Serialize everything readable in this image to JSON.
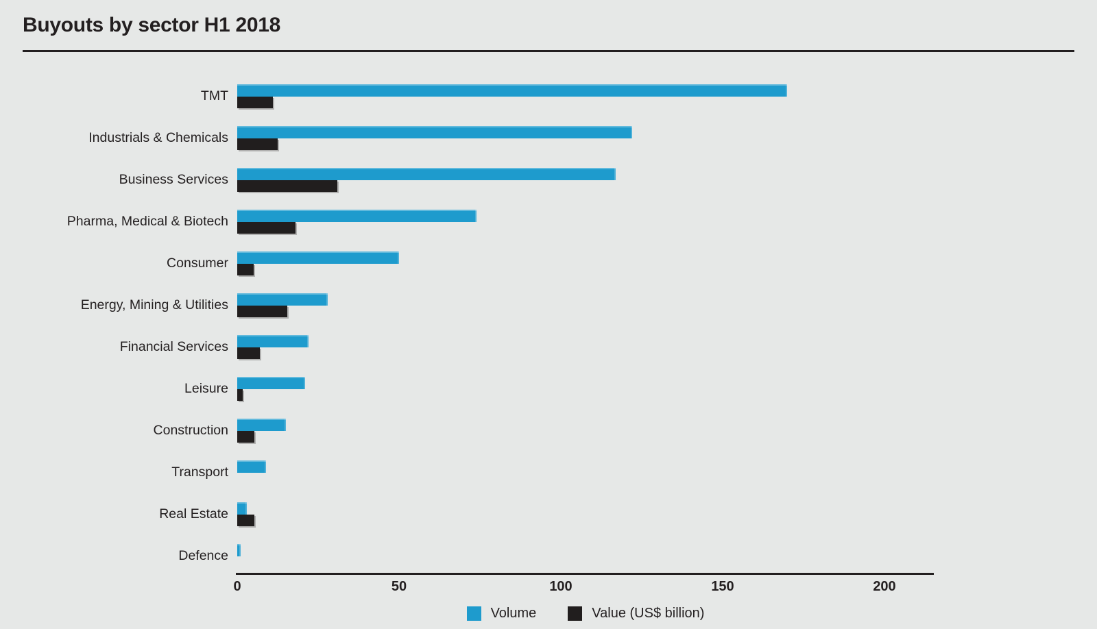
{
  "title": "Buyouts by sector H1 2018",
  "colors": {
    "background": "#e6e8e7",
    "volume_bar": "#1e9bcd",
    "value_bar": "#211e1e",
    "text": "#231f20",
    "axis_line": "#231f20"
  },
  "legend": [
    {
      "label": "Volume",
      "color": "#1e9bcd"
    },
    {
      "label": "Value (US$ billion)",
      "color": "#211e1e"
    }
  ],
  "axis": {
    "ticks": [
      "0",
      "50",
      "100",
      "150",
      "200"
    ],
    "tick_values": [
      0,
      50,
      100,
      150,
      200
    ],
    "max": 215
  },
  "chart_data": {
    "type": "bar",
    "orientation": "horizontal",
    "title": "Buyouts by sector H1 2018",
    "categories": [
      "TMT",
      "Industrials & Chemicals",
      "Business Services",
      "Pharma, Medical & Biotech",
      "Consumer",
      "Energy, Mining & Utilities",
      "Financial Services",
      "Leisure",
      "Construction",
      "Transport",
      "Real Estate",
      "Defence"
    ],
    "series": [
      {
        "name": "Volume",
        "color": "#1e9bcd",
        "values": [
          170,
          122,
          117,
          74,
          50,
          28,
          22,
          21,
          15,
          9,
          3,
          1
        ]
      },
      {
        "name": "Value (US$ billion)",
        "color": "#211e1e",
        "values": [
          11,
          12.5,
          31,
          18,
          5,
          15.5,
          7,
          1.8,
          5.4,
          0,
          5.2,
          0
        ]
      }
    ],
    "xlim": [
      0,
      215
    ],
    "x_ticks": [
      0,
      50,
      100,
      150,
      200
    ],
    "grid": false,
    "legend_position": "bottom"
  }
}
